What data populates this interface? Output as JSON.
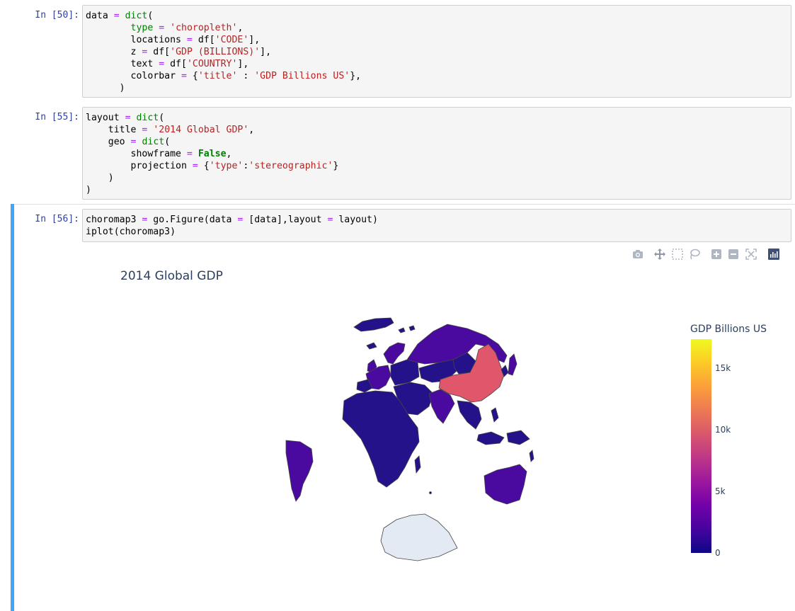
{
  "cells": [
    {
      "prompt": "In [50]:",
      "code_lines": [
        [
          [
            "data ",
            ""
          ],
          [
            "=",
            "o"
          ],
          [
            " ",
            ""
          ],
          [
            "dict",
            "k"
          ],
          [
            "(",
            ""
          ]
        ],
        [
          [
            "        ",
            ""
          ],
          [
            "type",
            "k"
          ],
          [
            " ",
            ""
          ],
          [
            "=",
            "o"
          ],
          [
            " ",
            ""
          ],
          [
            "'choropleth'",
            "s"
          ],
          [
            ",",
            ""
          ]
        ],
        [
          [
            "        locations ",
            ""
          ],
          [
            "=",
            "o"
          ],
          [
            " df[",
            ""
          ],
          [
            "'CODE'",
            "s"
          ],
          [
            "],",
            ""
          ]
        ],
        [
          [
            "        z ",
            ""
          ],
          [
            "=",
            "o"
          ],
          [
            " df[",
            ""
          ],
          [
            "'GDP (BILLIONS)'",
            "s"
          ],
          [
            "],",
            ""
          ]
        ],
        [
          [
            "        text ",
            ""
          ],
          [
            "=",
            "o"
          ],
          [
            " df[",
            ""
          ],
          [
            "'COUNTRY'",
            "s"
          ],
          [
            "],",
            ""
          ]
        ],
        [
          [
            "        colorbar ",
            ""
          ],
          [
            "=",
            "o"
          ],
          [
            " {",
            ""
          ],
          [
            "'title'",
            "s"
          ],
          [
            " : ",
            ""
          ],
          [
            "'GDP Billions US'",
            "s"
          ],
          [
            "},",
            ""
          ]
        ],
        [
          [
            "      )",
            ""
          ]
        ]
      ]
    },
    {
      "prompt": "In [55]:",
      "code_lines": [
        [
          [
            "layout ",
            ""
          ],
          [
            "=",
            "o"
          ],
          [
            " ",
            ""
          ],
          [
            "dict",
            "k"
          ],
          [
            "(",
            ""
          ]
        ],
        [
          [
            "    title ",
            ""
          ],
          [
            "=",
            "o"
          ],
          [
            " ",
            ""
          ],
          [
            "'2014 Global GDP'",
            "s"
          ],
          [
            ",",
            ""
          ]
        ],
        [
          [
            "    geo ",
            ""
          ],
          [
            "=",
            "o"
          ],
          [
            " ",
            ""
          ],
          [
            "dict",
            "k"
          ],
          [
            "(",
            ""
          ]
        ],
        [
          [
            "        showframe ",
            ""
          ],
          [
            "=",
            "o"
          ],
          [
            " ",
            ""
          ],
          [
            "False",
            "kb"
          ],
          [
            ",",
            ""
          ]
        ],
        [
          [
            "        projection ",
            ""
          ],
          [
            "=",
            "o"
          ],
          [
            " {",
            ""
          ],
          [
            "'type'",
            "s"
          ],
          [
            ":",
            ""
          ],
          [
            "'stereographic'",
            "s"
          ],
          [
            "}",
            ""
          ]
        ],
        [
          [
            "    )",
            ""
          ]
        ],
        [
          [
            ")",
            ""
          ]
        ]
      ]
    },
    {
      "prompt": "In [56]:",
      "code_lines": [
        [
          [
            "choromap3 ",
            ""
          ],
          [
            "=",
            "o"
          ],
          [
            " go.Figure(data ",
            ""
          ],
          [
            "=",
            "o"
          ],
          [
            " [data],layout ",
            ""
          ],
          [
            "=",
            "o"
          ],
          [
            " layout)",
            ""
          ]
        ],
        [
          [
            "iplot(choromap3)",
            ""
          ]
        ]
      ]
    }
  ],
  "figure": {
    "title": "2014 Global GDP",
    "colorbar": {
      "title": "GDP Billions US",
      "ticks": [
        "15k",
        "10k",
        "5k",
        "0"
      ],
      "colors": [
        "#0d0887",
        "#46039f",
        "#7201a8",
        "#9c179e",
        "#bd3786",
        "#d8576b",
        "#ed7953",
        "#fb9f3a",
        "#fdca26",
        "#f0f921"
      ]
    },
    "map_colors": {
      "low": "#24128a",
      "mid": "#4a0aa0",
      "china": "#e0566b",
      "antarctica": "#e3eaf4",
      "border": "#444444"
    },
    "modebar": [
      "camera-icon",
      "pan-icon",
      "box-select-icon",
      "lasso-icon",
      "zoom-in-icon",
      "zoom-out-icon",
      "autoscale-icon",
      "plotly-logo-icon"
    ]
  }
}
